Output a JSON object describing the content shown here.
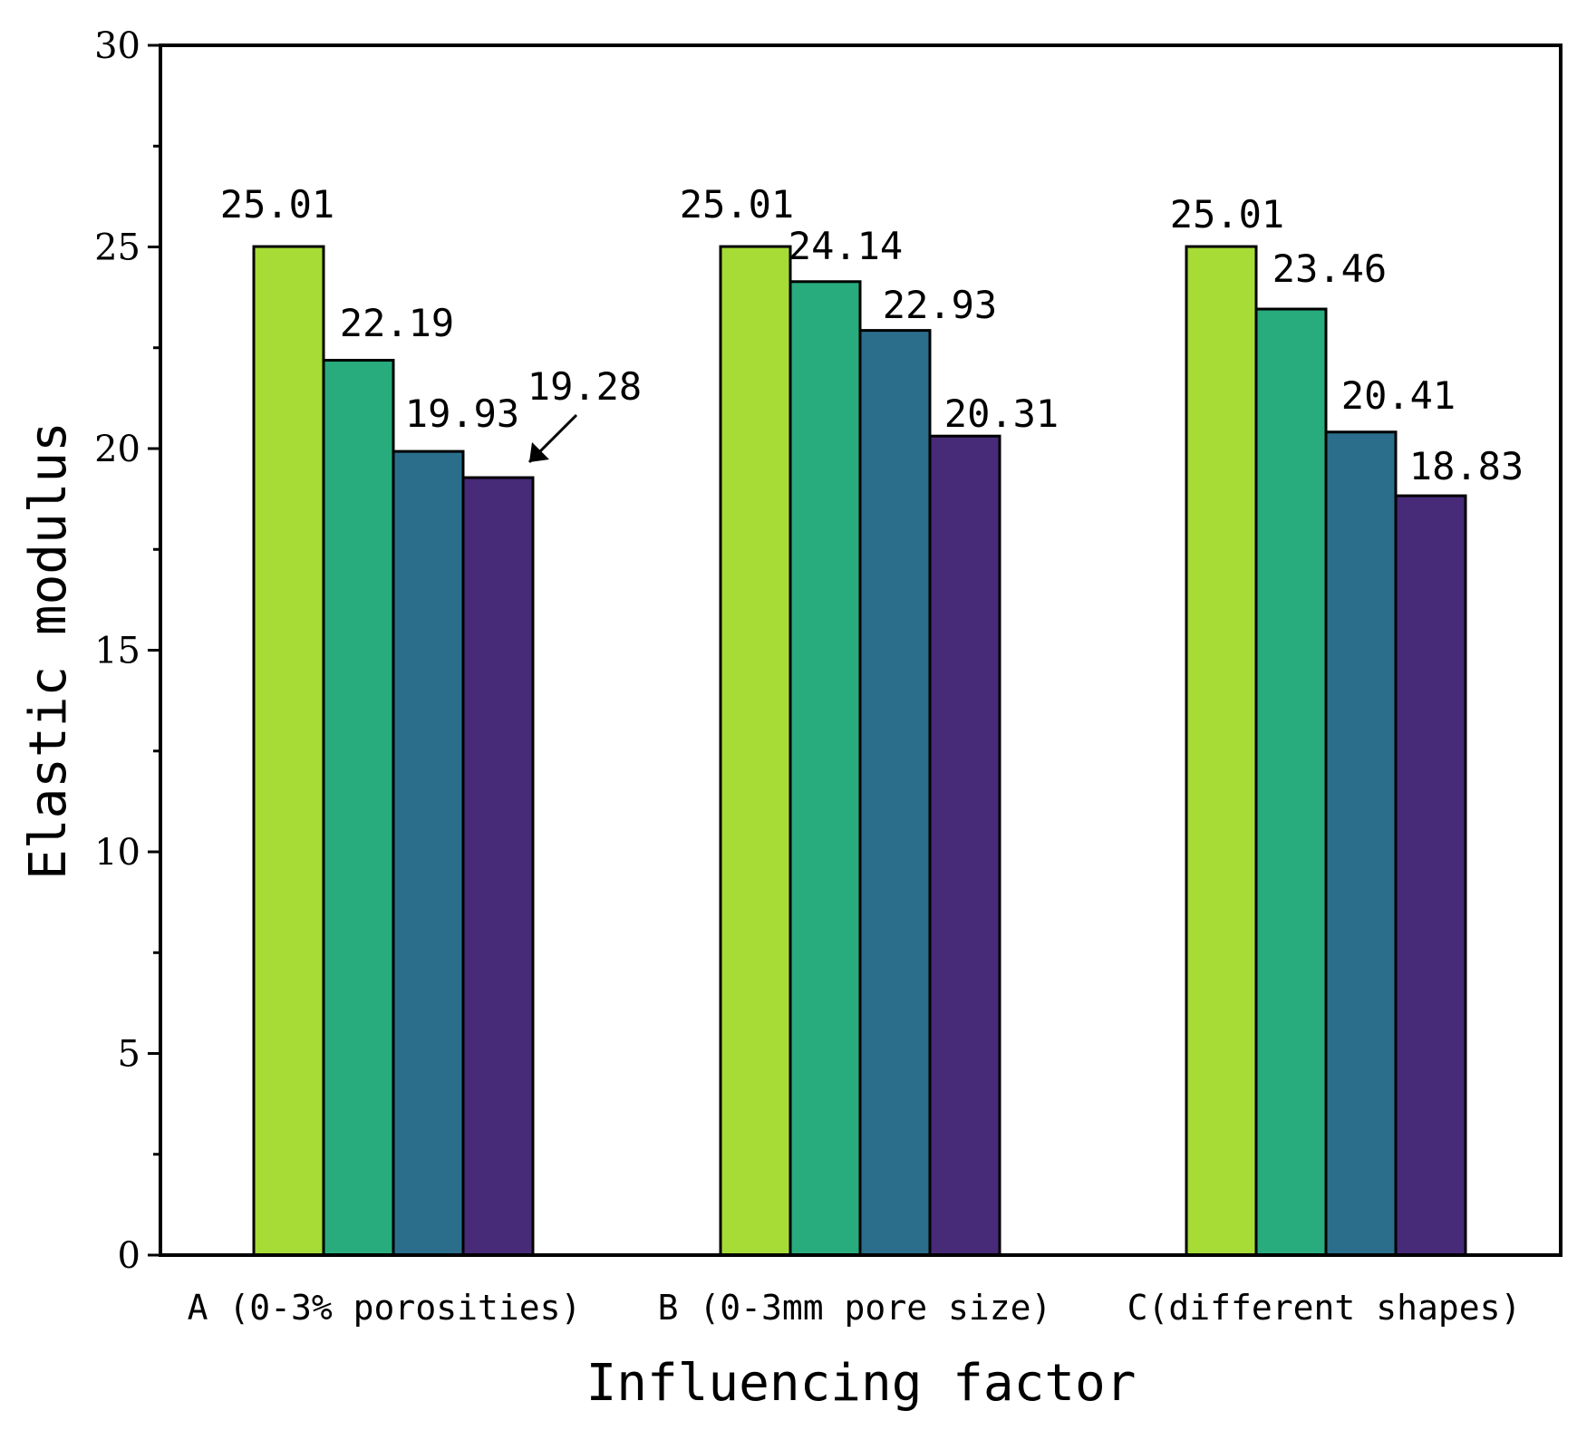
{
  "chart_data": {
    "type": "bar",
    "xlabel": "Influencing factor",
    "ylabel": "Elastic modulus",
    "ylim": [
      0,
      30
    ],
    "yticks": [
      "0",
      "5",
      "10",
      "15",
      "20",
      "25",
      "30"
    ],
    "categories": [
      "A (0-3% porosities)",
      "B (0-3mm pore size)",
      "C(different shapes)"
    ],
    "series_colors": [
      "#a6dc35",
      "#28ac7e",
      "#2a6e8c",
      "#472a78"
    ],
    "groups": [
      {
        "values": [
          25.01,
          22.19,
          19.93,
          19.28
        ],
        "labels": [
          "25.01",
          "22.19",
          "19.93",
          "19.28"
        ]
      },
      {
        "values": [
          25.01,
          24.14,
          22.93,
          20.31
        ],
        "labels": [
          "25.01",
          "24.14",
          "22.93",
          "20.31"
        ]
      },
      {
        "values": [
          25.01,
          23.46,
          20.41,
          18.83
        ],
        "labels": [
          "25.01",
          "23.46",
          "20.41",
          "18.83"
        ]
      }
    ],
    "grid": false,
    "annotation": {
      "text": "19.28",
      "arrow": true,
      "group": 0,
      "bar": 3
    }
  }
}
